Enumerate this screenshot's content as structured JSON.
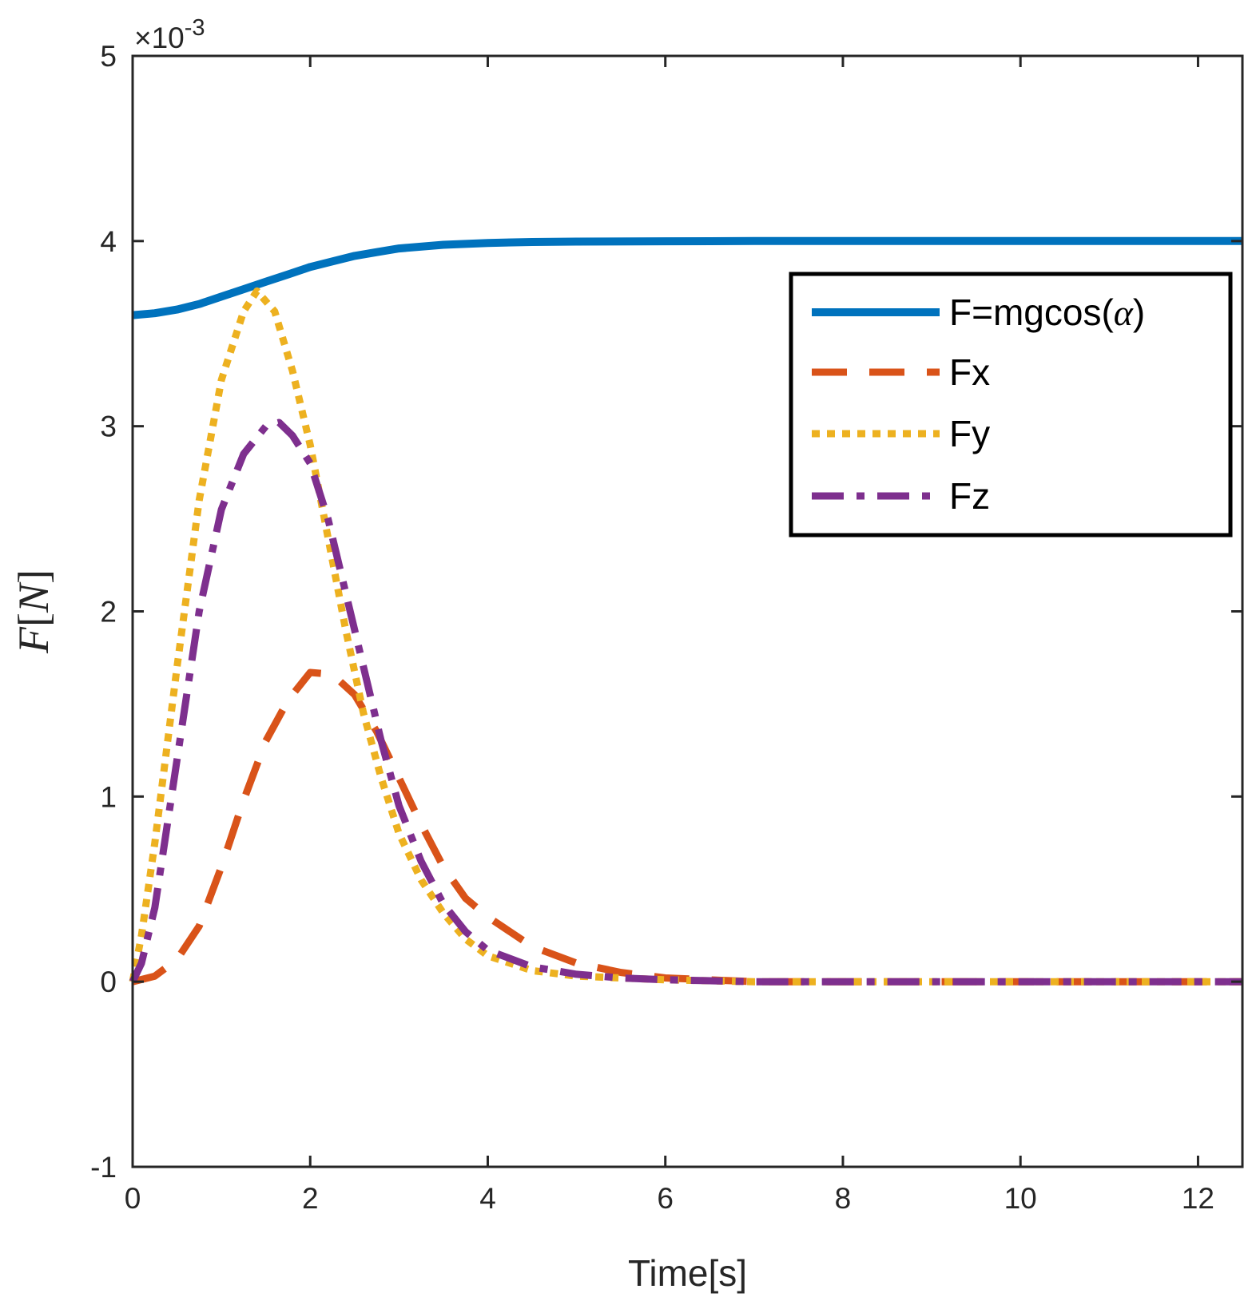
{
  "chart_data": {
    "type": "line",
    "xlabel": "Time[s]",
    "ylabel": "F[N]",
    "ylabel_parts": {
      "var": "F",
      "open": "[",
      "unit": "N",
      "close": "]"
    },
    "xlim": [
      0,
      12.5
    ],
    "ylim": [
      -1,
      5
    ],
    "y_exponent_label": {
      "prefix": "×10",
      "exponent": "-3"
    },
    "xticks": [
      0,
      2,
      4,
      6,
      8,
      10,
      12
    ],
    "xtick_labels": [
      "0",
      "2",
      "4",
      "6",
      "8",
      "10",
      "12"
    ],
    "yticks": [
      -1,
      0,
      1,
      2,
      3,
      4,
      5
    ],
    "ytick_labels": [
      "-1",
      "0",
      "1",
      "2",
      "3",
      "4",
      "5"
    ],
    "grid": false,
    "legend_position": "top-right",
    "series": [
      {
        "name": "F=mgcos(α)",
        "legend_parts": {
          "prefix": "F=mgcos(",
          "symbol": "α",
          "suffix": ")"
        },
        "color": "#0072BD",
        "style": "solid",
        "x": [
          0,
          0.25,
          0.5,
          0.75,
          1.0,
          1.25,
          1.5,
          1.75,
          2.0,
          2.25,
          2.5,
          2.75,
          3.0,
          3.5,
          4.0,
          4.5,
          5.0,
          6.0,
          7.0,
          8.0,
          9.0,
          10.0,
          11.0,
          12.0,
          12.5
        ],
        "y": [
          3.6,
          3.61,
          3.63,
          3.66,
          3.7,
          3.74,
          3.78,
          3.82,
          3.86,
          3.89,
          3.92,
          3.94,
          3.96,
          3.98,
          3.99,
          3.995,
          3.997,
          3.999,
          4.0,
          4.0,
          4.0,
          4.0,
          4.0,
          4.0,
          4.0
        ]
      },
      {
        "name": "Fx",
        "color": "#D95319",
        "style": "dashed",
        "x": [
          0,
          0.25,
          0.5,
          0.75,
          1.0,
          1.25,
          1.5,
          1.75,
          2.0,
          2.25,
          2.5,
          2.75,
          3.0,
          3.25,
          3.5,
          3.75,
          4.0,
          4.5,
          5.0,
          5.5,
          6.0,
          7.0,
          8.0,
          9.0,
          10.0,
          11.0,
          12.0,
          12.5
        ],
        "y": [
          0.0,
          0.03,
          0.12,
          0.3,
          0.62,
          0.98,
          1.3,
          1.52,
          1.67,
          1.66,
          1.55,
          1.35,
          1.1,
          0.85,
          0.62,
          0.45,
          0.35,
          0.19,
          0.1,
          0.05,
          0.02,
          0.0,
          0.0,
          0.0,
          0.0,
          0.0,
          0.0,
          0.0
        ]
      },
      {
        "name": "Fy",
        "color": "#EDB120",
        "style": "dotted",
        "x": [
          0,
          0.1,
          0.25,
          0.5,
          0.75,
          1.0,
          1.25,
          1.4,
          1.6,
          1.8,
          2.0,
          2.2,
          2.4,
          2.6,
          2.8,
          3.0,
          3.25,
          3.5,
          3.75,
          4.0,
          4.5,
          5.0,
          5.5,
          6.0,
          7.0,
          8.0,
          9.0,
          10.0,
          11.0,
          12.0,
          12.5
        ],
        "y": [
          0.0,
          0.25,
          0.75,
          1.7,
          2.6,
          3.25,
          3.62,
          3.73,
          3.62,
          3.3,
          2.9,
          2.4,
          1.9,
          1.45,
          1.1,
          0.8,
          0.55,
          0.37,
          0.23,
          0.14,
          0.06,
          0.03,
          0.02,
          0.01,
          0.0,
          0.0,
          0.0,
          0.0,
          0.0,
          0.0,
          0.0
        ]
      },
      {
        "name": "Fz",
        "color": "#7E2F8E",
        "style": "dashdot",
        "x": [
          0,
          0.1,
          0.25,
          0.5,
          0.75,
          1.0,
          1.25,
          1.5,
          1.65,
          1.8,
          2.0,
          2.2,
          2.4,
          2.6,
          2.8,
          3.0,
          3.25,
          3.5,
          3.75,
          4.0,
          4.5,
          5.0,
          5.5,
          6.0,
          7.0,
          8.0,
          9.0,
          10.0,
          11.0,
          12.0,
          12.5
        ],
        "y": [
          0.0,
          0.1,
          0.4,
          1.2,
          2.0,
          2.55,
          2.85,
          3.0,
          3.02,
          2.95,
          2.8,
          2.5,
          2.1,
          1.7,
          1.3,
          0.95,
          0.65,
          0.42,
          0.27,
          0.17,
          0.08,
          0.04,
          0.02,
          0.01,
          0.0,
          0.0,
          0.0,
          0.0,
          0.0,
          0.0,
          0.0
        ]
      }
    ]
  }
}
